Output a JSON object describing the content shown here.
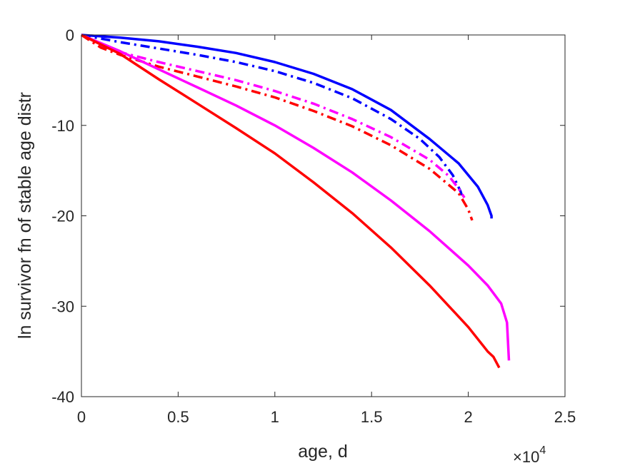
{
  "chart_data": {
    "type": "line",
    "xlabel": "age, d",
    "ylabel": "ln survivor fn of stable age distr",
    "x_exponent_label": "×10",
    "x_exponent_power": "4",
    "xlim": [
      0,
      25000
    ],
    "ylim": [
      -40,
      0
    ],
    "xticks": [
      0,
      5000,
      10000,
      15000,
      20000,
      25000
    ],
    "xtick_labels": [
      "0",
      "0.5",
      "1",
      "1.5",
      "2",
      "2.5"
    ],
    "yticks": [
      0,
      -10,
      -20,
      -30,
      -40
    ],
    "ytick_labels": [
      "0",
      "-10",
      "-20",
      "-30",
      "-40"
    ],
    "grid": false,
    "legend": "none",
    "series": [
      {
        "color": "#0000ff",
        "style": "solid",
        "x": [
          0,
          2000,
          4000,
          6000,
          8000,
          10000,
          12000,
          14000,
          16000,
          18000,
          19500,
          20500,
          21000,
          21200,
          21200
        ],
        "y": [
          0,
          -0.3,
          -0.7,
          -1.3,
          -2.0,
          -3.0,
          -4.3,
          -6.0,
          -8.3,
          -11.5,
          -14.2,
          -16.8,
          -18.8,
          -20.0,
          -20.3
        ]
      },
      {
        "color": "#0000ff",
        "style": "dashdot",
        "x": [
          0,
          2000,
          4000,
          6000,
          8000,
          10000,
          12000,
          14000,
          16000,
          17500,
          18500,
          19200,
          19600,
          19700
        ],
        "y": [
          0,
          -0.8,
          -1.5,
          -2.2,
          -3.0,
          -4.0,
          -5.3,
          -7.0,
          -9.3,
          -11.5,
          -13.5,
          -15.5,
          -17.3,
          -18.0
        ]
      },
      {
        "color": "#ff00ff",
        "style": "dashdot",
        "x": [
          0,
          1000,
          2000,
          4000,
          6000,
          8000,
          10000,
          12000,
          14000,
          16000,
          18000,
          19000,
          19500,
          19800
        ],
        "y": [
          0,
          -1.2,
          -1.9,
          -3.0,
          -4.0,
          -5.0,
          -6.2,
          -7.6,
          -9.3,
          -11.3,
          -13.8,
          -15.6,
          -17.0,
          -18.0
        ]
      },
      {
        "color": "#ff0000",
        "style": "dashdot",
        "x": [
          0,
          1000,
          2000,
          4000,
          6000,
          8000,
          10000,
          12000,
          14000,
          16000,
          18000,
          19500,
          20000,
          20200
        ],
        "y": [
          0,
          -1.4,
          -2.2,
          -3.5,
          -4.6,
          -5.7,
          -6.9,
          -8.4,
          -10.1,
          -12.2,
          -14.8,
          -17.5,
          -19.3,
          -20.5
        ]
      },
      {
        "color": "#ff00ff",
        "style": "solid",
        "x": [
          0,
          2000,
          4000,
          6000,
          8000,
          10000,
          12000,
          14000,
          16000,
          18000,
          20000,
          21000,
          21700,
          22000,
          22100
        ],
        "y": [
          0,
          -1.8,
          -3.8,
          -5.8,
          -7.8,
          -10.0,
          -12.5,
          -15.2,
          -18.3,
          -21.7,
          -25.5,
          -27.7,
          -29.7,
          -31.8,
          -36.0
        ]
      },
      {
        "color": "#ff0000",
        "style": "solid",
        "x": [
          0,
          2000,
          4000,
          6000,
          8000,
          10000,
          12000,
          14000,
          16000,
          18000,
          20000,
          21000,
          21300,
          21600
        ],
        "y": [
          0,
          -2.1,
          -4.9,
          -7.6,
          -10.3,
          -13.1,
          -16.3,
          -19.7,
          -23.5,
          -27.7,
          -32.3,
          -35.0,
          -35.6,
          -36.8
        ]
      }
    ]
  }
}
